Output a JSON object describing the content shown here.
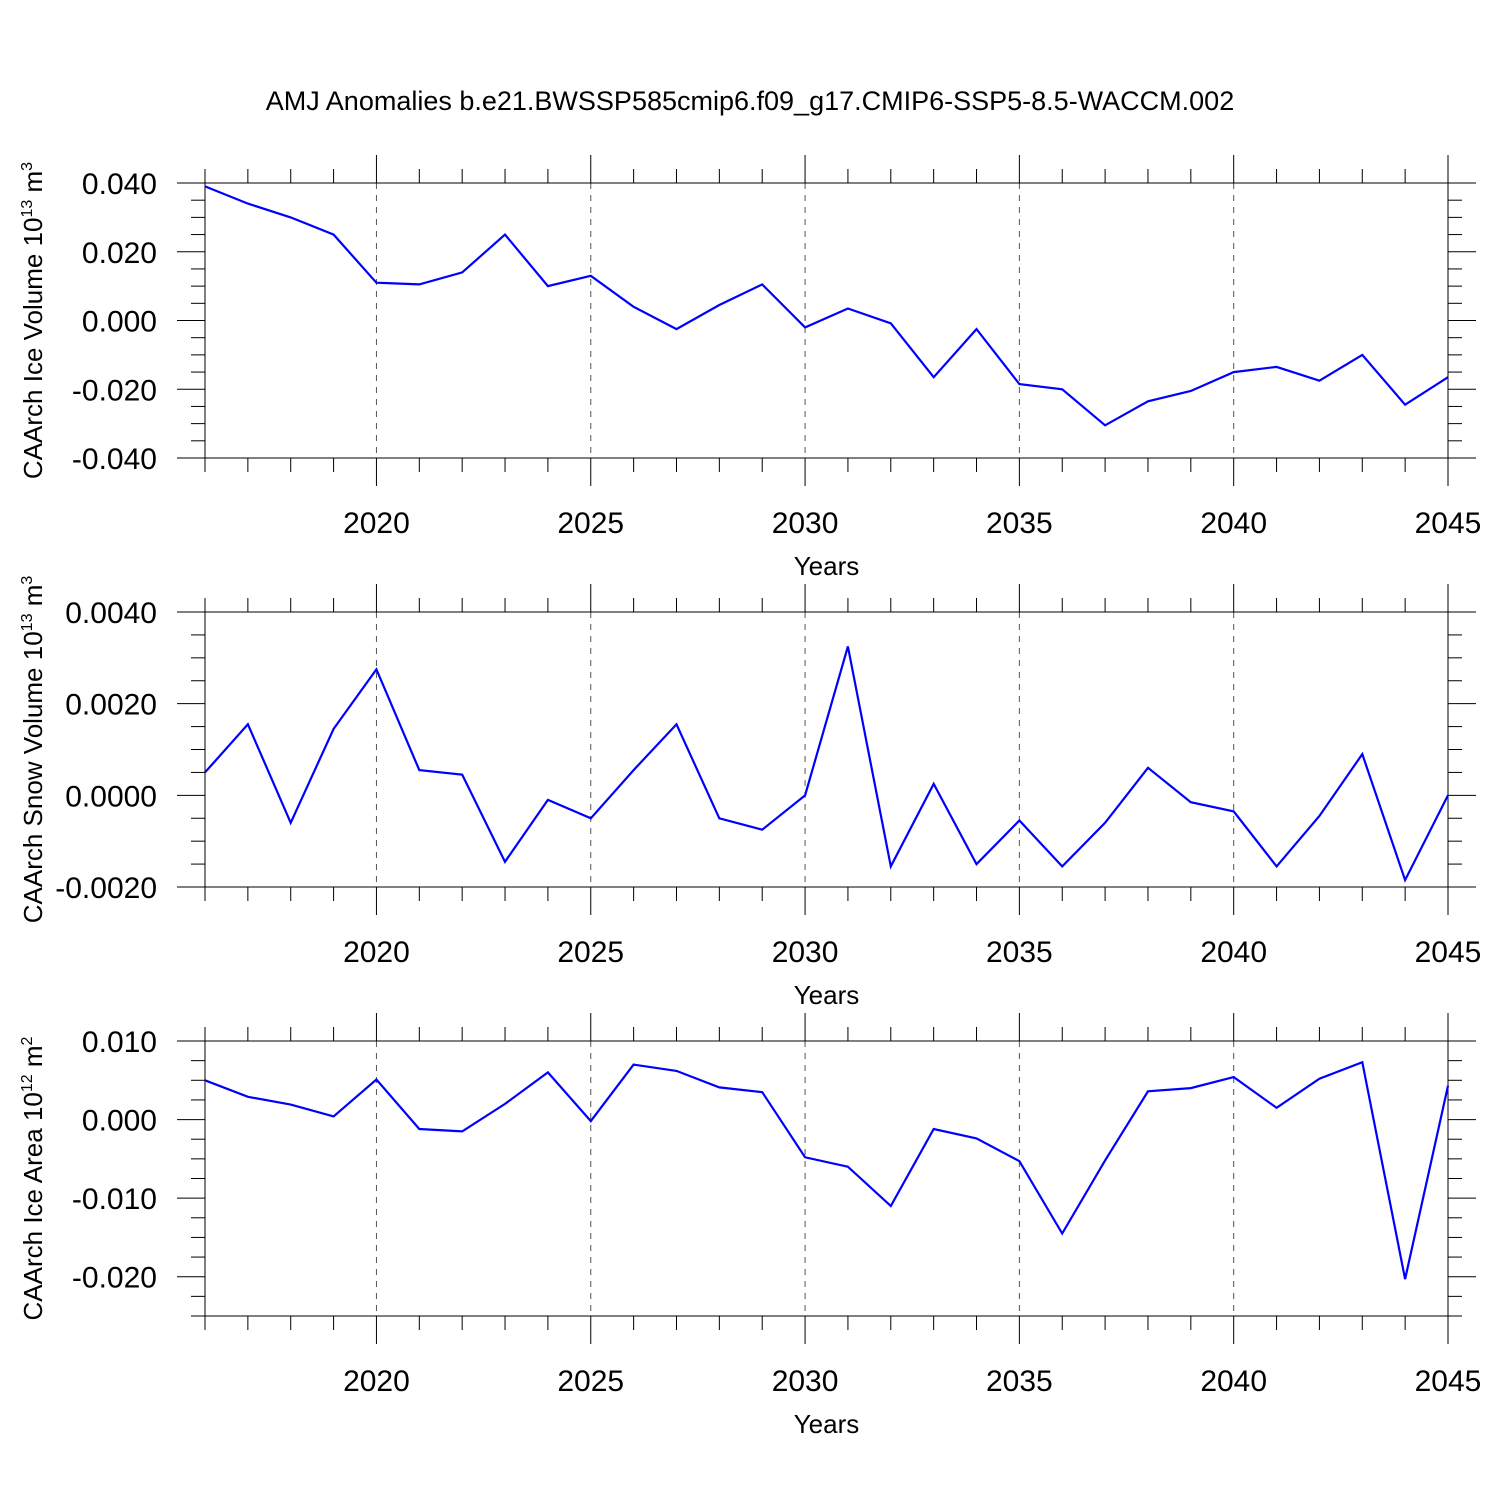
{
  "figure": {
    "title": "AMJ Anomalies b.e21.BWSSP585cmip6.f09_g17.CMIP6-SSP5-8.5-WACCM.002"
  },
  "colors": {
    "series": "#0000ff",
    "axes": "#000000",
    "grid": "#555555"
  },
  "chart_data": [
    {
      "type": "line",
      "ylabel": "CAArch Ice Volume 10",
      "ylabel_exp": "13",
      "ylabel_unit": " m",
      "ylabel_unit_exp": "3",
      "xlabel": "Years",
      "xlim": [
        2016,
        2045
      ],
      "ylim": [
        -0.04,
        0.04
      ],
      "xticks": [
        2020,
        2025,
        2030,
        2035,
        2040,
        2045
      ],
      "yticks": [
        -0.04,
        -0.02,
        0.0,
        0.02,
        0.04
      ],
      "ytick_labels": [
        "-0.040",
        "-0.020",
        "0.000",
        "0.020",
        "0.040"
      ],
      "y_minor_step": 0.005,
      "grid": "x-dashed",
      "x": [
        2016,
        2017,
        2018,
        2019,
        2020,
        2021,
        2022,
        2023,
        2024,
        2025,
        2026,
        2027,
        2028,
        2029,
        2030,
        2031,
        2032,
        2033,
        2034,
        2035,
        2036,
        2037,
        2038,
        2039,
        2040,
        2041,
        2042,
        2043,
        2044,
        2045
      ],
      "values": [
        0.039,
        0.034,
        0.03,
        0.025,
        0.011,
        0.0105,
        0.014,
        0.025,
        0.01,
        0.013,
        0.004,
        -0.0025,
        0.0045,
        0.0105,
        -0.002,
        0.0035,
        -0.0008,
        -0.0165,
        -0.0025,
        -0.0185,
        -0.02,
        -0.0305,
        -0.0235,
        -0.0205,
        -0.015,
        -0.0135,
        -0.0175,
        -0.01,
        -0.0245,
        -0.0165
      ]
    },
    {
      "type": "line",
      "ylabel": "CAArch Snow Volume 10",
      "ylabel_exp": "13",
      "ylabel_unit": " m",
      "ylabel_unit_exp": "3",
      "xlabel": "Years",
      "xlim": [
        2016,
        2045
      ],
      "ylim": [
        -0.002,
        0.004
      ],
      "xticks": [
        2020,
        2025,
        2030,
        2035,
        2040,
        2045
      ],
      "yticks": [
        -0.002,
        0.0,
        0.002,
        0.004
      ],
      "ytick_labels": [
        "-0.0020",
        "0.0000",
        "0.0020",
        "0.0040"
      ],
      "y_minor_step": 0.0005,
      "grid": "x-dashed",
      "x": [
        2016,
        2017,
        2018,
        2019,
        2020,
        2021,
        2022,
        2023,
        2024,
        2025,
        2026,
        2027,
        2028,
        2029,
        2030,
        2031,
        2032,
        2033,
        2034,
        2035,
        2036,
        2037,
        2038,
        2039,
        2040,
        2041,
        2042,
        2043,
        2044,
        2045
      ],
      "values": [
        0.0005,
        0.00155,
        -0.0006,
        0.00145,
        0.00275,
        0.00055,
        0.00045,
        -0.00145,
        -0.0001,
        -0.0005,
        0.00055,
        0.00155,
        -0.0005,
        -0.00075,
        0.0,
        0.00325,
        -0.00155,
        0.00025,
        -0.0015,
        -0.00055,
        -0.00155,
        -0.0006,
        0.0006,
        -0.00015,
        -0.00035,
        -0.00155,
        -0.00045,
        0.0009,
        -0.00185,
        0.0
      ]
    },
    {
      "type": "line",
      "ylabel": "CAArch Ice Area 10",
      "ylabel_exp": "12",
      "ylabel_unit": " m",
      "ylabel_unit_exp": "2",
      "xlabel": "Years",
      "xlim": [
        2016,
        2045
      ],
      "ylim": [
        -0.025,
        0.01
      ],
      "xticks": [
        2020,
        2025,
        2030,
        2035,
        2040,
        2045
      ],
      "yticks": [
        -0.02,
        -0.01,
        0.0,
        0.01
      ],
      "ytick_labels": [
        "-0.020",
        "-0.010",
        "0.000",
        "0.010"
      ],
      "y_minor_step": 0.0025,
      "grid": "x-dashed",
      "x": [
        2016,
        2017,
        2018,
        2019,
        2020,
        2021,
        2022,
        2023,
        2024,
        2025,
        2026,
        2027,
        2028,
        2029,
        2030,
        2031,
        2032,
        2033,
        2034,
        2035,
        2036,
        2037,
        2038,
        2039,
        2040,
        2041,
        2042,
        2043,
        2044,
        2045
      ],
      "values": [
        0.005,
        0.0029,
        0.0019,
        0.0004,
        0.0051,
        -0.0012,
        -0.0015,
        0.002,
        0.006,
        -0.0002,
        0.007,
        0.0062,
        0.0041,
        0.0035,
        -0.0048,
        -0.006,
        -0.011,
        -0.0012,
        -0.0024,
        -0.0053,
        -0.0145,
        -0.0052,
        0.0036,
        0.004,
        0.0054,
        0.0015,
        0.0052,
        0.0073,
        -0.0203,
        0.0043
      ]
    }
  ]
}
